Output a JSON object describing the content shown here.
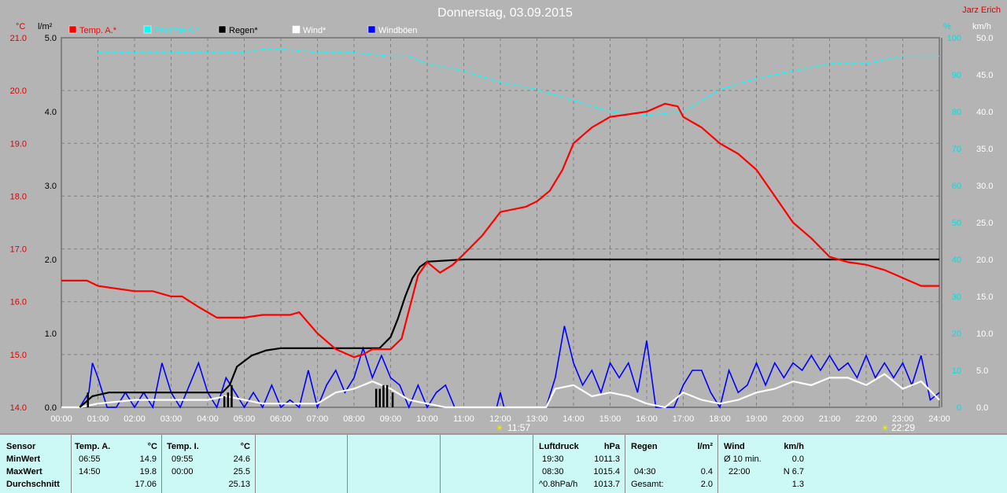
{
  "title": "Donnerstag, 03.09.2015",
  "author": "Jarz Erich",
  "legend": [
    {
      "label": "Temp. A.*",
      "color": "#ff0000"
    },
    {
      "label": "Feuchte A.*",
      "color": "#00ffff"
    },
    {
      "label": "Regen*",
      "color": "#000000"
    },
    {
      "label": "Wind*",
      "color": "#ffffff"
    },
    {
      "label": "Windböen",
      "color": "#0000ff"
    }
  ],
  "sun": {
    "rise": "11:57",
    "set": "22:29"
  },
  "chart_data": {
    "type": "line",
    "title": "Donnerstag, 03.09.2015",
    "x_ticks": [
      "00:00",
      "01:00",
      "02:00",
      "03:00",
      "04:00",
      "05:00",
      "06:00",
      "07:00",
      "08:00",
      "09:00",
      "10:00",
      "11:00",
      "12:00",
      "13:00",
      "14:00",
      "15:00",
      "16:00",
      "17:00",
      "18:00",
      "19:00",
      "20:00",
      "21:00",
      "22:00",
      "23:00",
      "24:00"
    ],
    "axes": {
      "temp": {
        "unit": "°C",
        "range": [
          14.0,
          21.0
        ],
        "ticks": [
          "14.0",
          "15.0",
          "16.0",
          "17.0",
          "18.0",
          "19.0",
          "20.0",
          "21.0"
        ]
      },
      "rain": {
        "unit": "l/m²",
        "range": [
          0,
          5.0
        ],
        "ticks": [
          "0.0",
          "1.0",
          "2.0",
          "3.0",
          "4.0",
          "5.0"
        ]
      },
      "hum": {
        "unit": "%",
        "range": [
          0,
          100
        ],
        "ticks": [
          "0",
          "10",
          "20",
          "30",
          "40",
          "50",
          "60",
          "70",
          "80",
          "90",
          "100"
        ]
      },
      "wind": {
        "unit": "km/h",
        "range": [
          0,
          50
        ],
        "ticks": [
          "0.0",
          "5.0",
          "10.0",
          "15.0",
          "20.0",
          "25.0",
          "30.0",
          "35.0",
          "40.0",
          "45.0",
          "50.0"
        ]
      }
    },
    "series": [
      {
        "name": "Temp. A.*",
        "axis": "temp",
        "color": "#ff0000",
        "x": [
          0,
          0.7,
          1,
          2,
          2.5,
          3,
          3.3,
          3.75,
          4.25,
          5,
          5.5,
          6.25,
          6.5,
          7,
          7.5,
          8,
          8.25,
          8.5,
          9,
          9.3,
          9.75,
          10,
          10.35,
          10.7,
          11,
          11.5,
          12,
          12.7,
          13,
          13.35,
          13.7,
          14,
          14.5,
          15,
          15.5,
          16,
          16.5,
          16.85,
          17,
          17.5,
          18,
          18.5,
          19,
          19.5,
          20,
          20.5,
          21,
          21.5,
          22,
          22.5,
          23,
          23.5,
          24
        ],
        "y": [
          16.4,
          16.4,
          16.3,
          16.2,
          16.2,
          16.1,
          16.1,
          15.9,
          15.7,
          15.7,
          15.75,
          15.75,
          15.8,
          15.4,
          15.1,
          14.95,
          15.0,
          15.1,
          15.1,
          15.3,
          16.5,
          16.75,
          16.55,
          16.7,
          16.9,
          17.25,
          17.7,
          17.8,
          17.9,
          18.1,
          18.5,
          19.0,
          19.3,
          19.5,
          19.55,
          19.6,
          19.75,
          19.7,
          19.5,
          19.3,
          19.0,
          18.8,
          18.5,
          18.0,
          17.5,
          17.2,
          16.85,
          16.75,
          16.7,
          16.6,
          16.45,
          16.3,
          16.3
        ]
      },
      {
        "name": "Feuchte A.*",
        "axis": "hum",
        "color": "#00ffff",
        "x": [
          1,
          2,
          3,
          4,
          5,
          5.5,
          6,
          7,
          8,
          9,
          9.5,
          10,
          11,
          12,
          13,
          14,
          15,
          16,
          17,
          18,
          19,
          20,
          21,
          22,
          23,
          24
        ],
        "y": [
          96,
          96,
          96,
          96,
          96,
          97,
          97,
          96,
          96,
          95,
          95,
          93,
          91,
          88,
          86,
          83,
          80,
          79,
          80,
          86,
          89,
          91,
          93,
          93,
          95,
          95
        ]
      },
      {
        "name": "Regen*",
        "axis": "rain",
        "color": "#000000",
        "x": [
          0.5,
          0.85,
          1.3,
          4.4,
          4.6,
          4.8,
          5.2,
          5.6,
          6,
          8.7,
          9,
          9.2,
          9.4,
          9.6,
          9.8,
          10,
          11,
          24
        ],
        "y": [
          0,
          0.15,
          0.2,
          0.2,
          0.3,
          0.55,
          0.7,
          0.77,
          0.8,
          0.8,
          0.95,
          1.2,
          1.5,
          1.75,
          1.9,
          1.97,
          2.0,
          2.0
        ]
      },
      {
        "name": "Wind*",
        "axis": "wind",
        "color": "#ffffff",
        "x": [
          0,
          0.5,
          1,
          2,
          3,
          4,
          4.5,
          5,
          5.5,
          6,
          7,
          7.5,
          8,
          8.5,
          9,
          9.5,
          10,
          10.5,
          13.25,
          13.5,
          14,
          14.5,
          15,
          15.5,
          16,
          16.5,
          17,
          17.5,
          18,
          18.5,
          19,
          19.5,
          20,
          20.5,
          21,
          21.5,
          22,
          22.5,
          23,
          23.5,
          24
        ],
        "y": [
          0,
          0,
          0.5,
          1,
          1,
          1,
          1.5,
          1,
          0.5,
          0.5,
          0.5,
          2,
          2.5,
          3.5,
          2.5,
          1,
          0.5,
          0,
          0,
          2.5,
          3,
          1.5,
          2,
          1.5,
          0.5,
          0,
          2,
          1,
          0.5,
          1,
          2,
          2.5,
          3.5,
          3,
          4,
          4,
          3,
          4.5,
          2.5,
          3.5,
          1
        ]
      },
      {
        "name": "Windböen",
        "axis": "wind",
        "color": "#0000ff",
        "x": [
          0,
          0.5,
          0.75,
          0.85,
          1,
          1.25,
          1.5,
          1.75,
          2,
          2.25,
          2.5,
          2.75,
          3,
          3.25,
          3.5,
          3.75,
          4,
          4.25,
          4.5,
          4.75,
          5,
          5.25,
          5.5,
          5.75,
          6,
          6.25,
          6.5,
          6.75,
          7,
          7.25,
          7.5,
          7.75,
          8,
          8.25,
          8.5,
          8.75,
          9,
          9.25,
          9.5,
          9.75,
          10,
          10.25,
          10.5,
          10.75,
          11.9,
          12,
          12.1,
          13.25,
          13.5,
          13.75,
          14,
          14.25,
          14.5,
          14.75,
          15,
          15.25,
          15.5,
          15.75,
          16,
          16.25,
          16.75,
          17,
          17.25,
          17.5,
          17.75,
          18,
          18.25,
          18.5,
          18.75,
          19,
          19.25,
          19.5,
          19.75,
          20,
          20.25,
          20.5,
          20.75,
          21,
          21.25,
          21.5,
          21.75,
          22,
          22.25,
          22.5,
          22.75,
          23,
          23.25,
          23.5,
          23.75,
          24
        ],
        "y": [
          0,
          0,
          2,
          6,
          4,
          0,
          0,
          2,
          0,
          2,
          0,
          6,
          2,
          0,
          3,
          6,
          2,
          0,
          4,
          2,
          0,
          2,
          0,
          3,
          0,
          1,
          0,
          5,
          0,
          3,
          5,
          2,
          4,
          8,
          4,
          7,
          4,
          3,
          0,
          3,
          0,
          2,
          3,
          0,
          0,
          2,
          0,
          0,
          4,
          11,
          6,
          3,
          5,
          2,
          6,
          4,
          6,
          2,
          9,
          0,
          0,
          3,
          5,
          5,
          2,
          0,
          5,
          2,
          3,
          6,
          3,
          6,
          4,
          6,
          5,
          7,
          5,
          7,
          5,
          6,
          4,
          7,
          4,
          6,
          4,
          6,
          3,
          7,
          1,
          2
        ]
      }
    ],
    "rain_bars": {
      "x": [
        0.72,
        4.45,
        4.55,
        4.65,
        8.6,
        8.7,
        8.8,
        8.9,
        9.05
      ],
      "y": [
        0.2,
        0.15,
        0.2,
        0.3,
        0.25,
        0.25,
        0.3,
        0.3,
        0.2
      ]
    }
  },
  "footer": {
    "sensor": {
      "head": "Sensor",
      "rows": [
        "MinWert",
        "MaxWert",
        "Durchschnitt"
      ]
    },
    "tempA": {
      "head": "Temp. A.",
      "unit": "°C",
      "min_t": "06:55",
      "min": "14.9",
      "max_t": "14:50",
      "max": "19.8",
      "avg": "17.06"
    },
    "tempI": {
      "head": "Temp. I.",
      "unit": "°C",
      "min_t": "09:55",
      "min": "24.6",
      "max_t": "00:00",
      "max": "25.5",
      "avg": "25.13"
    },
    "press": {
      "head": "Luftdruck",
      "unit": "hPa",
      "r1a": "19:30",
      "r1b": "1011.3",
      "r2a": "08:30",
      "r2b": "1015.4",
      "r3a": "^0.8hPa/h",
      "r3b": "1013.7"
    },
    "rain": {
      "head": "Regen",
      "unit": "l/m²",
      "r2a": "04:30",
      "r2b": "0.4",
      "r3a": "Gesamt:",
      "r3b": "2.0"
    },
    "wind": {
      "head": "Wind",
      "unit": "km/h",
      "r1a": "Ø 10 min.",
      "r1b": "0.0",
      "r2a": "22:00",
      "r2b": "N 6.7",
      "r3b": "1.3"
    }
  }
}
